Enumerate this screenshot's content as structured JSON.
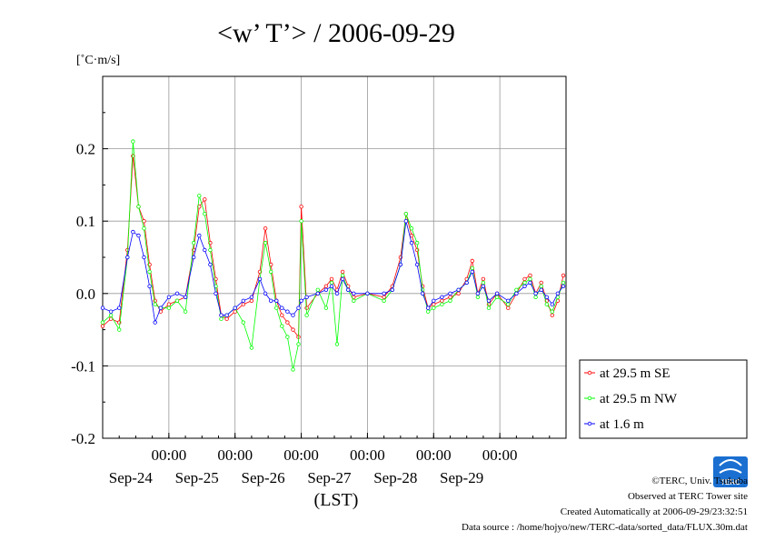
{
  "chart_data": {
    "type": "line",
    "title": "<w’ T’> / 2006-09-29",
    "unit_label": "[˚C·m/s]",
    "xlabel": "(LST)",
    "ylabel": "",
    "ylim": [
      -0.2,
      0.3
    ],
    "yticks": [
      {
        "value": 0.2,
        "label": "0.2"
      },
      {
        "value": 0.1,
        "label": "0.1"
      },
      {
        "value": 0.0,
        "label": "0.0"
      },
      {
        "value": -0.1,
        "label": "-0.1"
      },
      {
        "value": -0.2,
        "label": "-0.2"
      }
    ],
    "xlim": [
      "2006-09-23 00:00",
      "2006-09-30 00:00"
    ],
    "xticks": [
      {
        "value": "2006-09-24 00:00",
        "time_label": "00:00",
        "date_label": "Sep-24"
      },
      {
        "value": "2006-09-25 00:00",
        "time_label": "00:00",
        "date_label": "Sep-25"
      },
      {
        "value": "2006-09-26 00:00",
        "time_label": "00:00",
        "date_label": "Sep-26"
      },
      {
        "value": "2006-09-27 00:00",
        "time_label": "00:00",
        "date_label": "Sep-27"
      },
      {
        "value": "2006-09-28 00:00",
        "time_label": "00:00",
        "date_label": "Sep-28"
      },
      {
        "value": "2006-09-29 00:00",
        "time_label": "00:00",
        "date_label": "Sep-29"
      }
    ],
    "grid": true,
    "legend_position": "right",
    "series": [
      {
        "name": "at 29.5 m SE",
        "color": "#ff0000",
        "points": [
          [
            "2006-09-23 00:00",
            -0.045
          ],
          [
            "2006-09-23 03:00",
            -0.035
          ],
          [
            "2006-09-23 06:00",
            -0.04
          ],
          [
            "2006-09-23 09:00",
            0.06
          ],
          [
            "2006-09-23 11:00",
            0.19
          ],
          [
            "2006-09-23 13:00",
            0.12
          ],
          [
            "2006-09-23 15:00",
            0.1
          ],
          [
            "2006-09-23 17:00",
            0.04
          ],
          [
            "2006-09-23 19:00",
            -0.01
          ],
          [
            "2006-09-23 21:00",
            -0.025
          ],
          [
            "2006-09-24 00:00",
            -0.015
          ],
          [
            "2006-09-24 03:00",
            -0.01
          ],
          [
            "2006-09-24 06:00",
            -0.005
          ],
          [
            "2006-09-24 09:00",
            0.06
          ],
          [
            "2006-09-24 11:00",
            0.12
          ],
          [
            "2006-09-24 13:00",
            0.13
          ],
          [
            "2006-09-24 15:00",
            0.07
          ],
          [
            "2006-09-24 17:00",
            0.02
          ],
          [
            "2006-09-24 19:00",
            -0.03
          ],
          [
            "2006-09-24 21:00",
            -0.035
          ],
          [
            "2006-09-25 00:00",
            -0.025
          ],
          [
            "2006-09-25 03:00",
            -0.015
          ],
          [
            "2006-09-25 06:00",
            -0.01
          ],
          [
            "2006-09-25 09:00",
            0.03
          ],
          [
            "2006-09-25 11:00",
            0.09
          ],
          [
            "2006-09-25 13:00",
            0.04
          ],
          [
            "2006-09-25 15:00",
            -0.01
          ],
          [
            "2006-09-25 17:00",
            -0.03
          ],
          [
            "2006-09-25 19:00",
            -0.04
          ],
          [
            "2006-09-25 21:00",
            -0.05
          ],
          [
            "2006-09-25 23:00",
            -0.06
          ],
          [
            "2006-09-26 00:00",
            0.12
          ],
          [
            "2006-09-26 02:00",
            -0.02
          ],
          [
            "2006-09-26 06:00",
            0.0
          ],
          [
            "2006-09-26 09:00",
            0.01
          ],
          [
            "2006-09-26 11:00",
            0.02
          ],
          [
            "2006-09-26 13:00",
            0.005
          ],
          [
            "2006-09-26 15:00",
            0.03
          ],
          [
            "2006-09-26 17:00",
            0.01
          ],
          [
            "2006-09-26 19:00",
            -0.005
          ],
          [
            "2006-09-27 00:00",
            0.0
          ],
          [
            "2006-09-27 06:00",
            -0.005
          ],
          [
            "2006-09-27 09:00",
            0.01
          ],
          [
            "2006-09-27 12:00",
            0.05
          ],
          [
            "2006-09-27 14:00",
            0.11
          ],
          [
            "2006-09-27 16:00",
            0.08
          ],
          [
            "2006-09-27 18:00",
            0.06
          ],
          [
            "2006-09-27 20:00",
            0.01
          ],
          [
            "2006-09-27 22:00",
            -0.02
          ],
          [
            "2006-09-28 00:00",
            -0.015
          ],
          [
            "2006-09-28 03:00",
            -0.01
          ],
          [
            "2006-09-28 06:00",
            -0.005
          ],
          [
            "2006-09-28 09:00",
            0.0
          ],
          [
            "2006-09-28 12:00",
            0.02
          ],
          [
            "2006-09-28 14:00",
            0.045
          ],
          [
            "2006-09-28 16:00",
            0.0
          ],
          [
            "2006-09-28 18:00",
            0.02
          ],
          [
            "2006-09-28 20:00",
            -0.015
          ],
          [
            "2006-09-28 23:00",
            0.0
          ],
          [
            "2006-09-29 03:00",
            -0.02
          ],
          [
            "2006-09-29 06:00",
            0.0
          ],
          [
            "2006-09-29 09:00",
            0.02
          ],
          [
            "2006-09-29 11:00",
            0.025
          ],
          [
            "2006-09-29 13:00",
            0.0
          ],
          [
            "2006-09-29 15:00",
            0.015
          ],
          [
            "2006-09-29 17:00",
            -0.01
          ],
          [
            "2006-09-29 19:00",
            -0.03
          ],
          [
            "2006-09-29 21:00",
            -0.01
          ],
          [
            "2006-09-29 23:00",
            0.025
          ]
        ]
      },
      {
        "name": "at 29.5 m NW",
        "color": "#00ff00",
        "points": [
          [
            "2006-09-23 00:00",
            -0.04
          ],
          [
            "2006-09-23 03:00",
            -0.03
          ],
          [
            "2006-09-23 06:00",
            -0.05
          ],
          [
            "2006-09-23 09:00",
            0.05
          ],
          [
            "2006-09-23 11:00",
            0.21
          ],
          [
            "2006-09-23 13:00",
            0.12
          ],
          [
            "2006-09-23 15:00",
            0.09
          ],
          [
            "2006-09-23 17:00",
            0.03
          ],
          [
            "2006-09-23 19:00",
            -0.015
          ],
          [
            "2006-09-23 21:00",
            -0.02
          ],
          [
            "2006-09-24 00:00",
            -0.02
          ],
          [
            "2006-09-24 03:00",
            -0.01
          ],
          [
            "2006-09-24 06:00",
            -0.025
          ],
          [
            "2006-09-24 09:00",
            0.07
          ],
          [
            "2006-09-24 11:00",
            0.135
          ],
          [
            "2006-09-24 13:00",
            0.11
          ],
          [
            "2006-09-24 15:00",
            0.06
          ],
          [
            "2006-09-24 17:00",
            0.01
          ],
          [
            "2006-09-24 19:00",
            -0.035
          ],
          [
            "2006-09-24 21:00",
            -0.03
          ],
          [
            "2006-09-25 00:00",
            -0.02
          ],
          [
            "2006-09-25 03:00",
            -0.04
          ],
          [
            "2006-09-25 06:00",
            -0.075
          ],
          [
            "2006-09-25 09:00",
            0.02
          ],
          [
            "2006-09-25 11:00",
            0.07
          ],
          [
            "2006-09-25 13:00",
            0.03
          ],
          [
            "2006-09-25 15:00",
            -0.02
          ],
          [
            "2006-09-25 17:00",
            -0.045
          ],
          [
            "2006-09-25 19:00",
            -0.06
          ],
          [
            "2006-09-25 21:00",
            -0.105
          ],
          [
            "2006-09-25 23:00",
            -0.07
          ],
          [
            "2006-09-26 00:00",
            0.1
          ],
          [
            "2006-09-26 02:00",
            -0.03
          ],
          [
            "2006-09-26 06:00",
            0.005
          ],
          [
            "2006-09-26 09:00",
            -0.02
          ],
          [
            "2006-09-26 11:00",
            0.015
          ],
          [
            "2006-09-26 13:00",
            -0.07
          ],
          [
            "2006-09-26 15:00",
            0.025
          ],
          [
            "2006-09-26 17:00",
            0.005
          ],
          [
            "2006-09-26 19:00",
            -0.01
          ],
          [
            "2006-09-27 00:00",
            0.0
          ],
          [
            "2006-09-27 06:00",
            -0.01
          ],
          [
            "2006-09-27 09:00",
            0.005
          ],
          [
            "2006-09-27 12:00",
            0.04
          ],
          [
            "2006-09-27 14:00",
            0.11
          ],
          [
            "2006-09-27 16:00",
            0.09
          ],
          [
            "2006-09-27 18:00",
            0.07
          ],
          [
            "2006-09-27 20:00",
            0.005
          ],
          [
            "2006-09-27 22:00",
            -0.025
          ],
          [
            "2006-09-28 00:00",
            -0.02
          ],
          [
            "2006-09-28 03:00",
            -0.015
          ],
          [
            "2006-09-28 06:00",
            -0.01
          ],
          [
            "2006-09-28 09:00",
            0.005
          ],
          [
            "2006-09-28 12:00",
            0.015
          ],
          [
            "2006-09-28 14:00",
            0.035
          ],
          [
            "2006-09-28 16:00",
            -0.005
          ],
          [
            "2006-09-28 18:00",
            0.015
          ],
          [
            "2006-09-28 20:00",
            -0.02
          ],
          [
            "2006-09-28 23:00",
            -0.005
          ],
          [
            "2006-09-29 03:00",
            -0.015
          ],
          [
            "2006-09-29 06:00",
            0.005
          ],
          [
            "2006-09-29 09:00",
            0.015
          ],
          [
            "2006-09-29 11:00",
            0.02
          ],
          [
            "2006-09-29 13:00",
            -0.005
          ],
          [
            "2006-09-29 15:00",
            0.01
          ],
          [
            "2006-09-29 17:00",
            -0.015
          ],
          [
            "2006-09-29 19:00",
            -0.025
          ],
          [
            "2006-09-29 21:00",
            -0.005
          ],
          [
            "2006-09-29 23:00",
            0.015
          ]
        ]
      },
      {
        "name": "at 1.6 m",
        "color": "#0000ff",
        "points": [
          [
            "2006-09-23 00:00",
            -0.02
          ],
          [
            "2006-09-23 03:00",
            -0.025
          ],
          [
            "2006-09-23 06:00",
            -0.02
          ],
          [
            "2006-09-23 09:00",
            0.05
          ],
          [
            "2006-09-23 11:00",
            0.085
          ],
          [
            "2006-09-23 13:00",
            0.08
          ],
          [
            "2006-09-23 15:00",
            0.05
          ],
          [
            "2006-09-23 17:00",
            0.01
          ],
          [
            "2006-09-23 19:00",
            -0.04
          ],
          [
            "2006-09-23 21:00",
            -0.02
          ],
          [
            "2006-09-24 00:00",
            -0.005
          ],
          [
            "2006-09-24 03:00",
            0.0
          ],
          [
            "2006-09-24 06:00",
            -0.005
          ],
          [
            "2006-09-24 09:00",
            0.05
          ],
          [
            "2006-09-24 11:00",
            0.08
          ],
          [
            "2006-09-24 13:00",
            0.06
          ],
          [
            "2006-09-24 15:00",
            0.04
          ],
          [
            "2006-09-24 17:00",
            0.0
          ],
          [
            "2006-09-24 19:00",
            -0.03
          ],
          [
            "2006-09-24 21:00",
            -0.03
          ],
          [
            "2006-09-25 00:00",
            -0.02
          ],
          [
            "2006-09-25 03:00",
            -0.01
          ],
          [
            "2006-09-25 06:00",
            -0.005
          ],
          [
            "2006-09-25 09:00",
            0.02
          ],
          [
            "2006-09-25 11:00",
            0.0
          ],
          [
            "2006-09-25 13:00",
            -0.01
          ],
          [
            "2006-09-25 15:00",
            -0.01
          ],
          [
            "2006-09-25 17:00",
            -0.02
          ],
          [
            "2006-09-25 19:00",
            -0.025
          ],
          [
            "2006-09-25 21:00",
            -0.03
          ],
          [
            "2006-09-25 23:00",
            -0.02
          ],
          [
            "2006-09-26 00:00",
            -0.01
          ],
          [
            "2006-09-26 02:00",
            -0.005
          ],
          [
            "2006-09-26 06:00",
            0.0
          ],
          [
            "2006-09-26 09:00",
            0.005
          ],
          [
            "2006-09-26 11:00",
            0.01
          ],
          [
            "2006-09-26 13:00",
            0.0
          ],
          [
            "2006-09-26 15:00",
            0.02
          ],
          [
            "2006-09-26 17:00",
            0.005
          ],
          [
            "2006-09-26 19:00",
            0.0
          ],
          [
            "2006-09-27 00:00",
            0.0
          ],
          [
            "2006-09-27 06:00",
            0.0
          ],
          [
            "2006-09-27 09:00",
            0.005
          ],
          [
            "2006-09-27 12:00",
            0.04
          ],
          [
            "2006-09-27 14:00",
            0.1
          ],
          [
            "2006-09-27 16:00",
            0.07
          ],
          [
            "2006-09-27 18:00",
            0.04
          ],
          [
            "2006-09-27 20:00",
            0.0
          ],
          [
            "2006-09-27 22:00",
            -0.02
          ],
          [
            "2006-09-28 00:00",
            -0.01
          ],
          [
            "2006-09-28 03:00",
            -0.005
          ],
          [
            "2006-09-28 06:00",
            0.0
          ],
          [
            "2006-09-28 09:00",
            0.005
          ],
          [
            "2006-09-28 12:00",
            0.015
          ],
          [
            "2006-09-28 14:00",
            0.03
          ],
          [
            "2006-09-28 16:00",
            0.0
          ],
          [
            "2006-09-28 18:00",
            0.01
          ],
          [
            "2006-09-28 20:00",
            -0.01
          ],
          [
            "2006-09-28 23:00",
            0.0
          ],
          [
            "2006-09-29 03:00",
            -0.01
          ],
          [
            "2006-09-29 06:00",
            0.0
          ],
          [
            "2006-09-29 09:00",
            0.01
          ],
          [
            "2006-09-29 11:00",
            0.015
          ],
          [
            "2006-09-29 13:00",
            0.0
          ],
          [
            "2006-09-29 15:00",
            0.005
          ],
          [
            "2006-09-29 17:00",
            -0.005
          ],
          [
            "2006-09-29 19:00",
            -0.015
          ],
          [
            "2006-09-29 21:00",
            0.0
          ],
          [
            "2006-09-29 23:00",
            0.01
          ]
        ]
      }
    ]
  },
  "credits": {
    "copyright": "©TERC, Univ. Tsukuba",
    "observed": "Observed at TERC Tower site",
    "created": "Created Automatically at 2006-09-29/23:32:51",
    "source": "Data source : /home/hojyo/new/TERC-data/sorted_data/FLUX.30m.dat",
    "logo_text": "TERC"
  }
}
